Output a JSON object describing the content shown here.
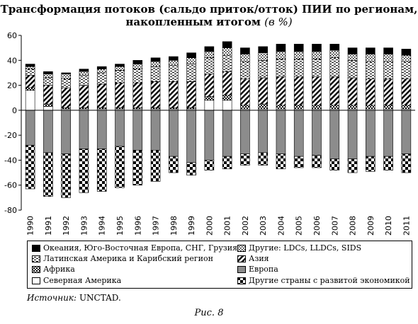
{
  "title_line1": "Трансформация потоков (сальдо приток/отток) ПИИ по регионам,",
  "title_line2": "накопленным итогом",
  "title_unit": "(в %)",
  "source_label": "Источник:",
  "source_value": "UNCTAD.",
  "caption": "Рис. 8",
  "chart_data": {
    "type": "bar",
    "stacked": true,
    "categories": [
      "1990",
      "1991",
      "1992",
      "1993",
      "1994",
      "1995",
      "1996",
      "1997",
      "1998",
      "1999",
      "2000",
      "2001",
      "2002",
      "2003",
      "2004",
      "2005",
      "2006",
      "2007",
      "2008",
      "2009",
      "2010",
      "2011"
    ],
    "ylim": [
      -80,
      60
    ],
    "yticks": [
      -80,
      -60,
      -40,
      -20,
      0,
      20,
      40,
      60
    ],
    "legend_placement": "bottom",
    "series": [
      {
        "name": "Северная Америка",
        "pattern": "white",
        "values": [
          16,
          3,
          1,
          1,
          1,
          1,
          1,
          1,
          1,
          1,
          8,
          8,
          1,
          1,
          1,
          1,
          1,
          1,
          1,
          1,
          1,
          1
        ]
      },
      {
        "name": "Африка",
        "pattern": "checker-small",
        "values": [
          2,
          2,
          1,
          1,
          1,
          1,
          1,
          1,
          1,
          1,
          3,
          4,
          3,
          4,
          3,
          3,
          3,
          3,
          3,
          3,
          3,
          3
        ]
      },
      {
        "name": "Азия",
        "pattern": "diagonal",
        "values": [
          10,
          15,
          16,
          18,
          19,
          20,
          20,
          21,
          21,
          21,
          18,
          19,
          21,
          21,
          23,
          23,
          23,
          23,
          22,
          21,
          21,
          21
        ]
      },
      {
        "name": "Латинская Америка и Карибский регион",
        "pattern": "small-lines",
        "values": [
          5,
          6,
          7,
          8,
          9,
          10,
          11,
          12,
          13,
          14,
          13,
          13,
          14,
          14,
          14,
          14,
          14,
          15,
          14,
          14,
          14,
          14
        ]
      },
      {
        "name": "Другие: LDCs, LLDCs, SIDS",
        "pattern": "dots",
        "values": [
          2,
          3,
          4,
          3,
          3,
          3,
          4,
          4,
          4,
          5,
          5,
          6,
          6,
          6,
          6,
          6,
          6,
          6,
          5,
          6,
          6,
          5
        ]
      },
      {
        "name": "Океания, Юго-Восточная Европа, СНГ, Грузия",
        "pattern": "black",
        "values": [
          2,
          2,
          1,
          2,
          2,
          2,
          3,
          3,
          3,
          4,
          4,
          5,
          5,
          5,
          6,
          6,
          6,
          5,
          5,
          5,
          5,
          5
        ]
      },
      {
        "name": "Европа",
        "pattern": "gray",
        "values": [
          -28,
          -34,
          -35,
          -31,
          -31,
          -29,
          -32,
          -32,
          -37,
          -42,
          -40,
          -37,
          -35,
          -34,
          -35,
          -37,
          -36,
          -39,
          -39,
          -37,
          -37,
          -35
        ]
      },
      {
        "name": "Другие страны с развитой экономикой",
        "pattern": "checker-large",
        "values": [
          -35,
          -35,
          -35,
          -35,
          -34,
          -33,
          -28,
          -25,
          -13,
          -10,
          -8,
          -10,
          -9,
          -10,
          -12,
          -9,
          -10,
          -9,
          -11,
          -12,
          -11,
          -15
        ]
      }
    ]
  },
  "legend": [
    {
      "label": "Океания, Юго-Восточная Европа, СНГ, Грузия",
      "pattern": "black"
    },
    {
      "label": "Латинская Америка и Карибский регион",
      "pattern": "small-lines"
    },
    {
      "label": "Африка",
      "pattern": "checker-small"
    },
    {
      "label": "Северная Америка",
      "pattern": "white"
    },
    {
      "label": "Другие: LDCs, LLDCs, SIDS",
      "pattern": "dots"
    },
    {
      "label": "Азия",
      "pattern": "diagonal"
    },
    {
      "label": "Европа",
      "pattern": "gray"
    },
    {
      "label": "Другие страны с развитой экономикой",
      "pattern": "checker-large"
    }
  ]
}
